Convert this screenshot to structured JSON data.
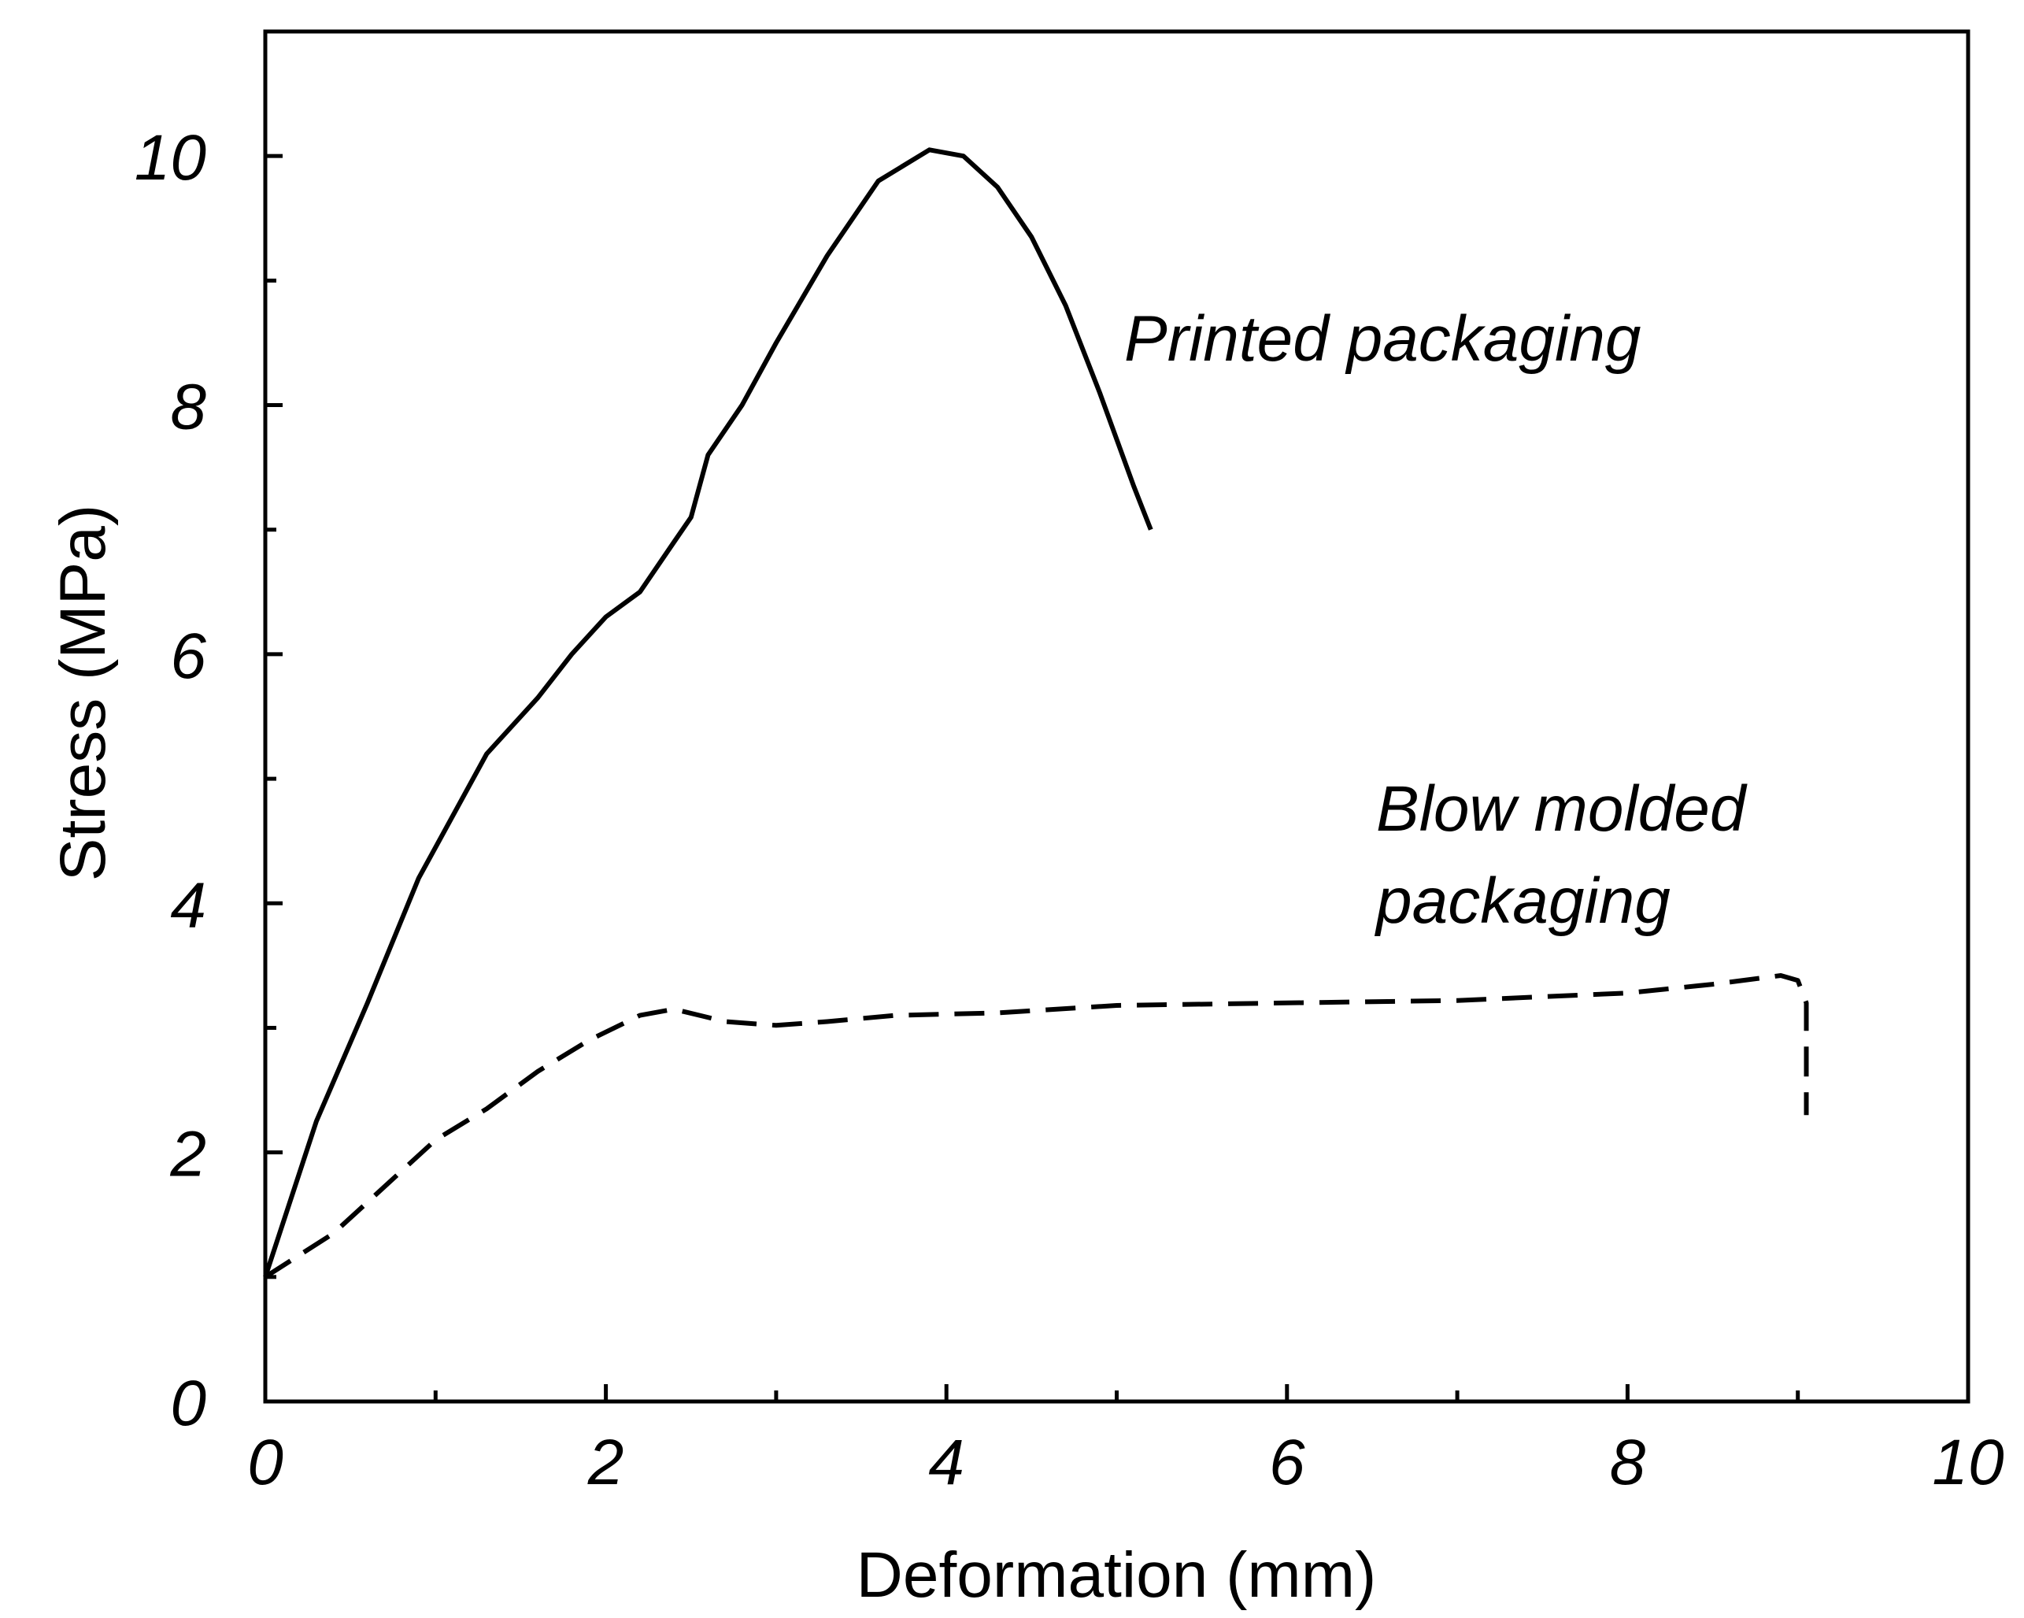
{
  "chart_data": {
    "type": "line",
    "title": "",
    "xlabel": "Deformation (mm)",
    "ylabel": "Stress (MPa)",
    "xlim": [
      0,
      10
    ],
    "ylim": [
      0,
      11
    ],
    "x_ticks": [
      0,
      2,
      4,
      6,
      8,
      10
    ],
    "x_tick_labels": [
      "0",
      "2",
      "4",
      "6",
      "8",
      "10"
    ],
    "y_ticks": [
      0,
      2,
      4,
      6,
      8,
      10
    ],
    "y_tick_labels": [
      "0",
      "2",
      "4",
      "6",
      "8",
      "10"
    ],
    "grid": false,
    "legend": "none",
    "series": [
      {
        "key": "printed",
        "style": "solid",
        "color": "#000000",
        "points": [
          [
            0,
            1.0
          ],
          [
            0.3,
            2.25
          ],
          [
            0.6,
            3.2
          ],
          [
            0.9,
            4.2
          ],
          [
            1.3,
            5.2
          ],
          [
            1.6,
            5.65
          ],
          [
            1.8,
            6.0
          ],
          [
            2.0,
            6.3
          ],
          [
            2.2,
            6.5
          ],
          [
            2.4,
            6.9
          ],
          [
            2.5,
            7.1
          ],
          [
            2.6,
            7.6
          ],
          [
            2.8,
            8.0
          ],
          [
            3.0,
            8.5
          ],
          [
            3.3,
            9.2
          ],
          [
            3.6,
            9.8
          ],
          [
            3.9,
            10.05
          ],
          [
            4.1,
            10.0
          ],
          [
            4.3,
            9.75
          ],
          [
            4.5,
            9.35
          ],
          [
            4.7,
            8.8
          ],
          [
            4.9,
            8.1
          ],
          [
            5.1,
            7.35
          ],
          [
            5.2,
            7.0
          ]
        ]
      },
      {
        "key": "blow",
        "style": "dashed",
        "color": "#000000",
        "points": [
          [
            0,
            1.0
          ],
          [
            0.4,
            1.35
          ],
          [
            0.8,
            1.85
          ],
          [
            1.0,
            2.1
          ],
          [
            1.3,
            2.35
          ],
          [
            1.6,
            2.65
          ],
          [
            1.9,
            2.9
          ],
          [
            2.2,
            3.1
          ],
          [
            2.4,
            3.15
          ],
          [
            2.7,
            3.05
          ],
          [
            3.0,
            3.02
          ],
          [
            3.3,
            3.05
          ],
          [
            3.7,
            3.1
          ],
          [
            4.3,
            3.12
          ],
          [
            5.0,
            3.18
          ],
          [
            6.0,
            3.2
          ],
          [
            7.0,
            3.22
          ],
          [
            8.0,
            3.28
          ],
          [
            8.5,
            3.35
          ],
          [
            8.9,
            3.42
          ],
          [
            9.0,
            3.38
          ],
          [
            9.05,
            3.2
          ],
          [
            9.05,
            2.3
          ]
        ]
      }
    ],
    "annotations": [
      {
        "key": "printed",
        "lines": [
          "Printed packaging"
        ]
      },
      {
        "key": "blow",
        "lines": [
          "Blow molded",
          "packaging"
        ]
      }
    ]
  }
}
